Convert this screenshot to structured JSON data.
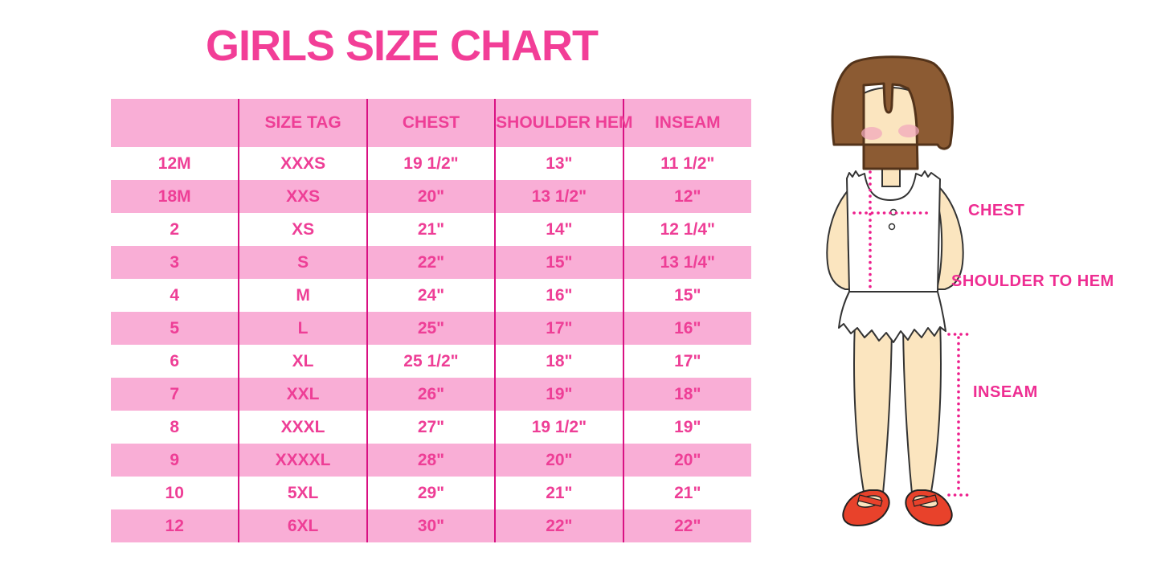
{
  "title": "GIRLS SIZE CHART",
  "colors": {
    "title_pink": "#F23E97",
    "text_pink": "#EE3E96",
    "row_pink": "#F9AED6",
    "divider_magenta": "#D91183",
    "dotted_magenta": "#ED1E8C",
    "label_magenta": "#EE2D92",
    "hair_brown": "#8C5B33",
    "hair_outline": "#53331A",
    "skin": "#FBE5BF",
    "blush": "#F2A8BC",
    "garment_white": "#FFFFFF",
    "outline_dark": "#333333",
    "shoe_red": "#E8422B"
  },
  "table": {
    "headers": [
      "",
      "SIZE TAG",
      "CHEST",
      "SHOULDER HEM",
      "INSEAM"
    ],
    "rows": [
      [
        "12M",
        "XXXS",
        "19 1/2\"",
        "13\"",
        "11 1/2\""
      ],
      [
        "18M",
        "XXS",
        "20\"",
        "13 1/2\"",
        "12\""
      ],
      [
        "2",
        "XS",
        "21\"",
        "14\"",
        "12 1/4\""
      ],
      [
        "3",
        "S",
        "22\"",
        "15\"",
        "13 1/4\""
      ],
      [
        "4",
        "M",
        "24\"",
        "16\"",
        "15\""
      ],
      [
        "5",
        "L",
        "25\"",
        "17\"",
        "16\""
      ],
      [
        "6",
        "XL",
        "25 1/2\"",
        "18\"",
        "17\""
      ],
      [
        "7",
        "XXL",
        "26\"",
        "19\"",
        "18\""
      ],
      [
        "8",
        "XXXL",
        "27\"",
        "19 1/2\"",
        "19\""
      ],
      [
        "9",
        "XXXXL",
        "28\"",
        "20\"",
        "20\""
      ],
      [
        "10",
        "5XL",
        "29\"",
        "21\"",
        "21\""
      ],
      [
        "12",
        "6XL",
        "30\"",
        "22\"",
        "22\""
      ]
    ]
  },
  "diagram": {
    "labels": {
      "chest": "CHEST",
      "shoulder_to_hem": "SHOULDER TO HEM",
      "inseam": "INSEAM"
    }
  }
}
